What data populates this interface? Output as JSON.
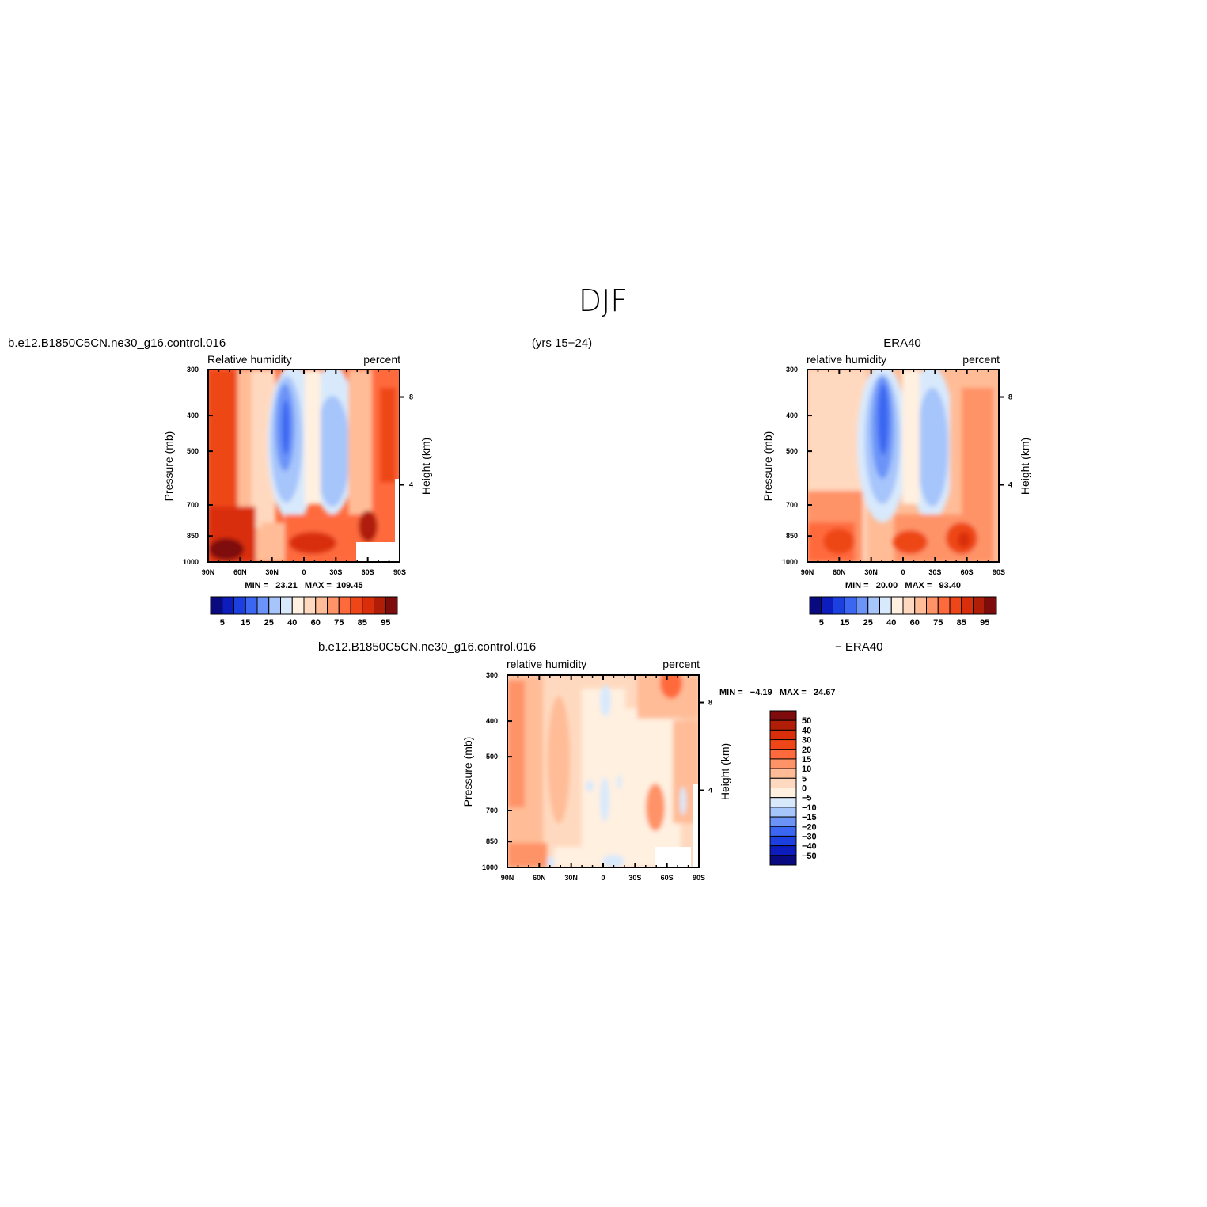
{
  "figure": {
    "title": "DJF",
    "subtitle": "(yrs 15−24)"
  },
  "x_ticks": [
    "90N",
    "60N",
    "30N",
    "0",
    "30S",
    "60S",
    "90S"
  ],
  "y_ticks": [
    "300",
    "400",
    "500",
    "700",
    "850",
    "1000"
  ],
  "height_ticks": [
    "8",
    "4"
  ],
  "panels": {
    "model": {
      "case": "b.e12.B1850C5CN.ne30_g16.control.016",
      "left_label": "Relative  humidity",
      "right_label": "percent",
      "ylabel": "Pressure  (mb)",
      "ylabel2": "Height  (km)",
      "stats": "MIN =   23.21   MAX =  109.45"
    },
    "obs": {
      "case": "ERA40",
      "left_label": "relative  humidity",
      "right_label": "percent",
      "ylabel": "Pressure  (mb)",
      "ylabel2": "Height  (km)",
      "stats": "MIN =   20.00   MAX =   93.40"
    },
    "diff": {
      "case": "b.e12.B1850C5CN.ne30_g16.control.016",
      "case2": "−  ERA40",
      "left_label": "relative  humidity",
      "right_label": "percent",
      "ylabel": "Pressure  (mb)",
      "ylabel2": "Height  (km)",
      "stats": "MIN =   −4.19   MAX =   24.67"
    }
  },
  "colorbar_rh": {
    "labels": [
      "5",
      "15",
      "25",
      "40",
      "60",
      "75",
      "85",
      "95"
    ],
    "colors": [
      "#0a0a80",
      "#0d1dbd",
      "#1c3fe0",
      "#3a66f2",
      "#6c94f8",
      "#a6c5fb",
      "#d8e9fc",
      "#fff0e0",
      "#ffd9bf",
      "#ffbc97",
      "#ff9368",
      "#ff6a3c",
      "#ee4619",
      "#d92e0c",
      "#b01e08",
      "#7e0c0c"
    ]
  },
  "colorbar_diff": {
    "labels": [
      "50",
      "40",
      "30",
      "20",
      "15",
      "10",
      "5",
      "0",
      "−5",
      "−10",
      "−15",
      "−20",
      "−30",
      "−40",
      "−50"
    ],
    "colors": [
      "#7e0c0c",
      "#b01e08",
      "#d92e0c",
      "#ee4619",
      "#ff6a3c",
      "#ff9368",
      "#ffbc97",
      "#ffd9bf",
      "#fff0e0",
      "#d8e9fc",
      "#a6c5fb",
      "#6c94f8",
      "#3a66f2",
      "#1c3fe0",
      "#0d1dbd",
      "#0a0a80"
    ]
  },
  "chart_data": [
    {
      "type": "heatmap",
      "title": "b.e12.B1850C5CN.ne30_g16.control.016",
      "xlabel": "",
      "ylabel": "Pressure  (mb)",
      "x": [
        "90N",
        "60N",
        "30N",
        "0",
        "30S",
        "60S",
        "90S"
      ],
      "y": [
        300,
        400,
        500,
        700,
        850,
        1000
      ],
      "ylim": [
        1000,
        300
      ],
      "min": 23.21,
      "max": 109.45
    },
    {
      "type": "heatmap",
      "title": "ERA40",
      "xlabel": "",
      "ylabel": "Pressure  (mb)",
      "x": [
        "90N",
        "60N",
        "30N",
        "0",
        "30S",
        "60S",
        "90S"
      ],
      "y": [
        300,
        400,
        500,
        700,
        850,
        1000
      ],
      "ylim": [
        1000,
        300
      ],
      "min": 20.0,
      "max": 93.4
    },
    {
      "type": "heatmap",
      "title": "b.e12.B1850C5CN.ne30_g16.control.016 − ERA40",
      "xlabel": "",
      "ylabel": "Pressure  (mb)",
      "x": [
        "90N",
        "60N",
        "30N",
        "0",
        "30S",
        "60S",
        "90S"
      ],
      "y": [
        300,
        400,
        500,
        700,
        850,
        1000
      ],
      "ylim": [
        1000,
        300
      ],
      "min": -4.19,
      "max": 24.67
    }
  ]
}
